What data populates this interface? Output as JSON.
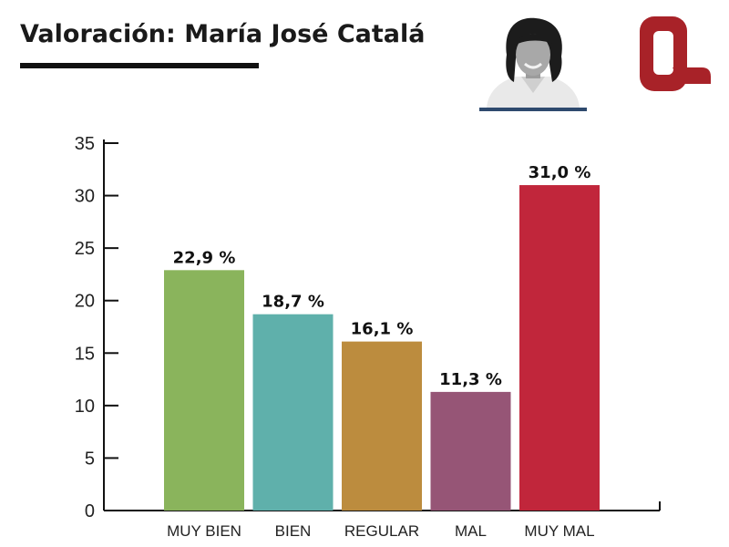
{
  "chart_data": {
    "type": "bar",
    "title": "Valoración: María José Catalá",
    "categories": [
      "MUY BIEN",
      "BIEN",
      "REGULAR",
      "MAL",
      "MUY MAL"
    ],
    "values": [
      22.9,
      18.7,
      16.1,
      11.3,
      31.0
    ],
    "value_labels": [
      "22,9 %",
      "18,7 %",
      "16,1 %",
      "11,3 %",
      "31,0 %"
    ],
    "colors": [
      "#8ab45c",
      "#5fb0ab",
      "#bc8c3e",
      "#965576",
      "#c1263b"
    ],
    "yticks": [
      "0",
      "5",
      "10",
      "15",
      "20",
      "25",
      "30",
      "35"
    ],
    "ylim": [
      0,
      35
    ],
    "grid": false,
    "legend": "none"
  },
  "brand": {
    "logo_color": "#a82228",
    "accent_line_color": "#2e4a6e"
  }
}
